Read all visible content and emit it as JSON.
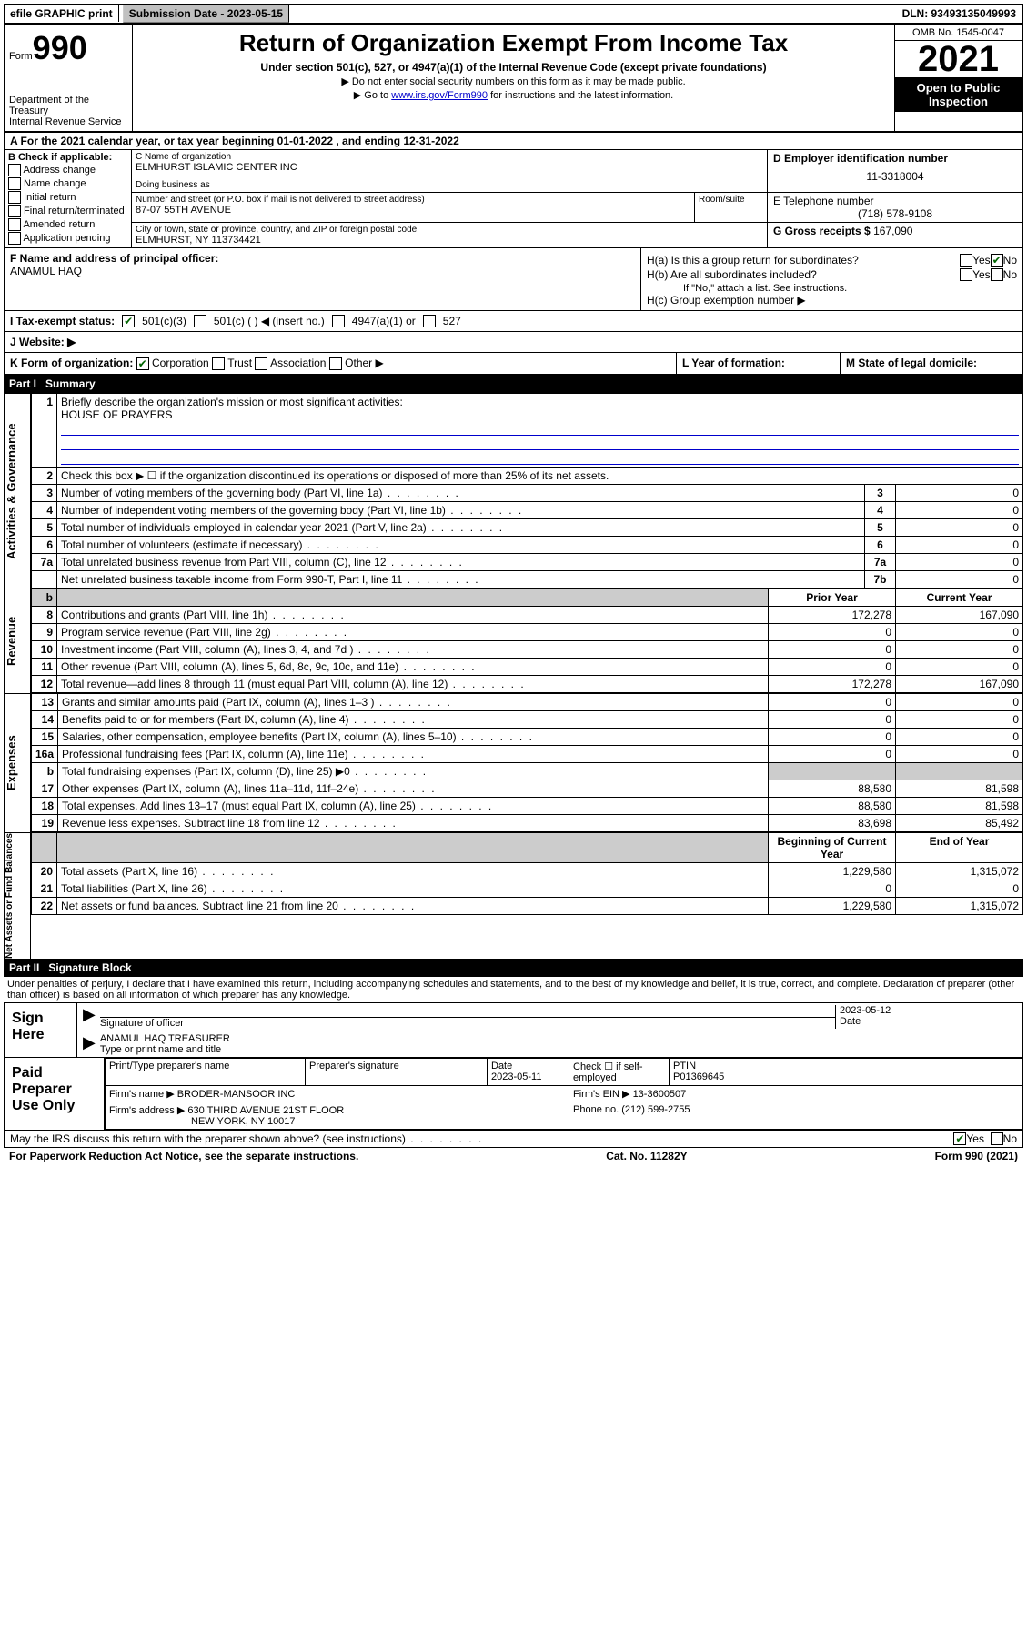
{
  "topbar": {
    "efile": "efile GRAPHIC print",
    "sub_label": "Submission Date - 2023-05-15",
    "dln": "DLN: 93493135049993"
  },
  "header": {
    "form_word": "Form",
    "form_num": "990",
    "dept": "Department of the Treasury",
    "irs": "Internal Revenue Service",
    "title": "Return of Organization Exempt From Income Tax",
    "sub": "Under section 501(c), 527, or 4947(a)(1) of the Internal Revenue Code (except private foundations)",
    "note1": "▶ Do not enter social security numbers on this form as it may be made public.",
    "note2_pre": "▶ Go to ",
    "note2_link": "www.irs.gov/Form990",
    "note2_post": " for instructions and the latest information.",
    "omb": "OMB No. 1545-0047",
    "year": "2021",
    "inspection": "Open to Public Inspection"
  },
  "row_a": "A For the 2021 calendar year, or tax year beginning 01-01-2022   , and ending 12-31-2022",
  "col_b": {
    "title": "B Check if applicable:",
    "items": [
      "Address change",
      "Name change",
      "Initial return",
      "Final return/terminated",
      "Amended return",
      "Application pending"
    ]
  },
  "col_c": {
    "name_label": "C Name of organization",
    "name": "ELMHURST ISLAMIC CENTER INC",
    "dba_label": "Doing business as",
    "street_label": "Number and street (or P.O. box if mail is not delivered to street address)",
    "room_label": "Room/suite",
    "street": "87-07 55TH AVENUE",
    "city_label": "City or town, state or province, country, and ZIP or foreign postal code",
    "city": "ELMHURST, NY  113734421"
  },
  "col_d": {
    "ein_label": "D Employer identification number",
    "ein": "11-3318004",
    "tel_label": "E Telephone number",
    "tel": "(718) 578-9108",
    "gross_label": "G Gross receipts $",
    "gross": "167,090"
  },
  "row_f": {
    "label": "F Name and address of principal officer:",
    "name": "ANAMUL HAQ"
  },
  "row_h": {
    "ha": "H(a)  Is this a group return for subordinates?",
    "hb": "H(b)  Are all subordinates included?",
    "hb_note": "If \"No,\" attach a list. See instructions.",
    "hc": "H(c)  Group exemption number ▶",
    "yes": "Yes",
    "no": "No"
  },
  "row_i": {
    "label": "I   Tax-exempt status:",
    "o1": "501(c)(3)",
    "o2": "501(c) (  ) ◀ (insert no.)",
    "o3": "4947(a)(1) or",
    "o4": "527"
  },
  "row_j": "J   Website: ▶",
  "row_k": {
    "k": "K Form of organization:",
    "corp": "Corporation",
    "trust": "Trust",
    "assoc": "Association",
    "other": "Other ▶",
    "l": "L Year of formation:",
    "m": "M State of legal domicile:"
  },
  "part1": {
    "num": "Part I",
    "title": "Summary",
    "l1": "Briefly describe the organization's mission or most significant activities:",
    "mission": "HOUSE OF PRAYERS",
    "l2": "Check this box ▶ ☐  if the organization discontinued its operations or disposed of more than 25% of its net assets.",
    "vlabel_gov": "Activities & Governance",
    "vlabel_rev": "Revenue",
    "vlabel_exp": "Expenses",
    "vlabel_net": "Net Assets or Fund Balances",
    "hdr_prior": "Prior Year",
    "hdr_curr": "Current Year",
    "hdr_boy": "Beginning of Current Year",
    "hdr_eoy": "End of Year",
    "lines_gov": [
      {
        "n": "3",
        "t": "Number of voting members of the governing body (Part VI, line 1a)",
        "b": "3",
        "v": "0"
      },
      {
        "n": "4",
        "t": "Number of independent voting members of the governing body (Part VI, line 1b)",
        "b": "4",
        "v": "0"
      },
      {
        "n": "5",
        "t": "Total number of individuals employed in calendar year 2021 (Part V, line 2a)",
        "b": "5",
        "v": "0"
      },
      {
        "n": "6",
        "t": "Total number of volunteers (estimate if necessary)",
        "b": "6",
        "v": "0"
      },
      {
        "n": "7a",
        "t": "Total unrelated business revenue from Part VIII, column (C), line 12",
        "b": "7a",
        "v": "0"
      },
      {
        "n": "",
        "t": "Net unrelated business taxable income from Form 990-T, Part I, line 11",
        "b": "7b",
        "v": "0"
      }
    ],
    "lines_rev": [
      {
        "n": "8",
        "t": "Contributions and grants (Part VIII, line 1h)",
        "p": "172,278",
        "c": "167,090"
      },
      {
        "n": "9",
        "t": "Program service revenue (Part VIII, line 2g)",
        "p": "0",
        "c": "0"
      },
      {
        "n": "10",
        "t": "Investment income (Part VIII, column (A), lines 3, 4, and 7d )",
        "p": "0",
        "c": "0"
      },
      {
        "n": "11",
        "t": "Other revenue (Part VIII, column (A), lines 5, 6d, 8c, 9c, 10c, and 11e)",
        "p": "0",
        "c": "0"
      },
      {
        "n": "12",
        "t": "Total revenue—add lines 8 through 11 (must equal Part VIII, column (A), line 12)",
        "p": "172,278",
        "c": "167,090"
      }
    ],
    "lines_exp": [
      {
        "n": "13",
        "t": "Grants and similar amounts paid (Part IX, column (A), lines 1–3 )",
        "p": "0",
        "c": "0"
      },
      {
        "n": "14",
        "t": "Benefits paid to or for members (Part IX, column (A), line 4)",
        "p": "0",
        "c": "0"
      },
      {
        "n": "15",
        "t": "Salaries, other compensation, employee benefits (Part IX, column (A), lines 5–10)",
        "p": "0",
        "c": "0"
      },
      {
        "n": "16a",
        "t": "Professional fundraising fees (Part IX, column (A), line 11e)",
        "p": "0",
        "c": "0"
      },
      {
        "n": "b",
        "t": "Total fundraising expenses (Part IX, column (D), line 25) ▶0",
        "p": "",
        "c": "",
        "shade": true
      },
      {
        "n": "17",
        "t": "Other expenses (Part IX, column (A), lines 11a–11d, 11f–24e)",
        "p": "88,580",
        "c": "81,598"
      },
      {
        "n": "18",
        "t": "Total expenses. Add lines 13–17 (must equal Part IX, column (A), line 25)",
        "p": "88,580",
        "c": "81,598"
      },
      {
        "n": "19",
        "t": "Revenue less expenses. Subtract line 18 from line 12",
        "p": "83,698",
        "c": "85,492"
      }
    ],
    "lines_net": [
      {
        "n": "20",
        "t": "Total assets (Part X, line 16)",
        "p": "1,229,580",
        "c": "1,315,072"
      },
      {
        "n": "21",
        "t": "Total liabilities (Part X, line 26)",
        "p": "0",
        "c": "0"
      },
      {
        "n": "22",
        "t": "Net assets or fund balances. Subtract line 21 from line 20",
        "p": "1,229,580",
        "c": "1,315,072"
      }
    ]
  },
  "part2": {
    "num": "Part II",
    "title": "Signature Block",
    "penalty": "Under penalties of perjury, I declare that I have examined this return, including accompanying schedules and statements, and to the best of my knowledge and belief, it is true, correct, and complete. Declaration of preparer (other than officer) is based on all information of which preparer has any knowledge.",
    "sign_here": "Sign Here",
    "sig_officer": "Signature of officer",
    "sig_date": "2023-05-12",
    "sig_date_label": "Date",
    "sig_name": "ANAMUL HAQ  TREASURER",
    "sig_name_label": "Type or print name and title",
    "paid": "Paid Preparer Use Only",
    "prep_name_label": "Print/Type preparer's name",
    "prep_sig_label": "Preparer's signature",
    "prep_date_label": "Date",
    "prep_date": "2023-05-11",
    "prep_check": "Check ☐ if self-employed",
    "ptin_label": "PTIN",
    "ptin": "P01369645",
    "firm_name_label": "Firm's name    ▶",
    "firm_name": "BRODER-MANSOOR INC",
    "firm_ein_label": "Firm's EIN ▶",
    "firm_ein": "13-3600507",
    "firm_addr_label": "Firm's address ▶",
    "firm_addr1": "630 THIRD AVENUE 21ST FLOOR",
    "firm_addr2": "NEW YORK, NY  10017",
    "firm_phone_label": "Phone no.",
    "firm_phone": "(212) 599-2755",
    "discuss": "May the IRS discuss this return with the preparer shown above? (see instructions)"
  },
  "footer": {
    "pra": "For Paperwork Reduction Act Notice, see the separate instructions.",
    "cat": "Cat. No. 11282Y",
    "form": "Form 990 (2021)"
  }
}
